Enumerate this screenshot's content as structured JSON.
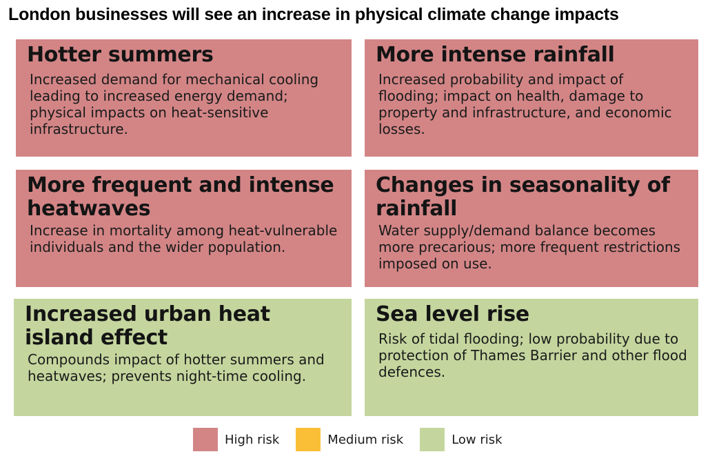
{
  "title": "London businesses will see an increase in physical climate change impacts",
  "cards": [
    {
      "title": "Hotter summers",
      "body": "Increased demand for mechanical cooling leading to increased energy demand; physical impacts on heat-sensitive infrastructure.",
      "risk": "high"
    },
    {
      "title": "More intense rainfall",
      "body": "Increased probability and impact of flooding; impact on health, damage to property and infrastructure, and economic losses.",
      "risk": "high"
    },
    {
      "title": "More frequent and intense heatwaves",
      "body": "Increase in mortality among heat-vulnerable individuals and the wider population.",
      "risk": "high"
    },
    {
      "title": "Changes in seasonality of rainfall",
      "body": "Water supply/demand balance becomes more precarious; more frequent restrictions imposed on use.",
      "risk": "high"
    },
    {
      "title": "Increased urban heat island effect",
      "body": "Compounds impact of hotter summers and heatwaves; prevents night-time cooling.",
      "risk": "low"
    },
    {
      "title": "Sea level rise",
      "body": "Risk of tidal flooding; low probability due to protection of Thames Barrier and other flood defences.",
      "risk": "low"
    }
  ],
  "legend": [
    {
      "label": "High risk",
      "color": "#d38586"
    },
    {
      "label": "Medium risk",
      "color": "#fbbf37"
    },
    {
      "label": "Low risk",
      "color": "#c4d69e"
    }
  ]
}
